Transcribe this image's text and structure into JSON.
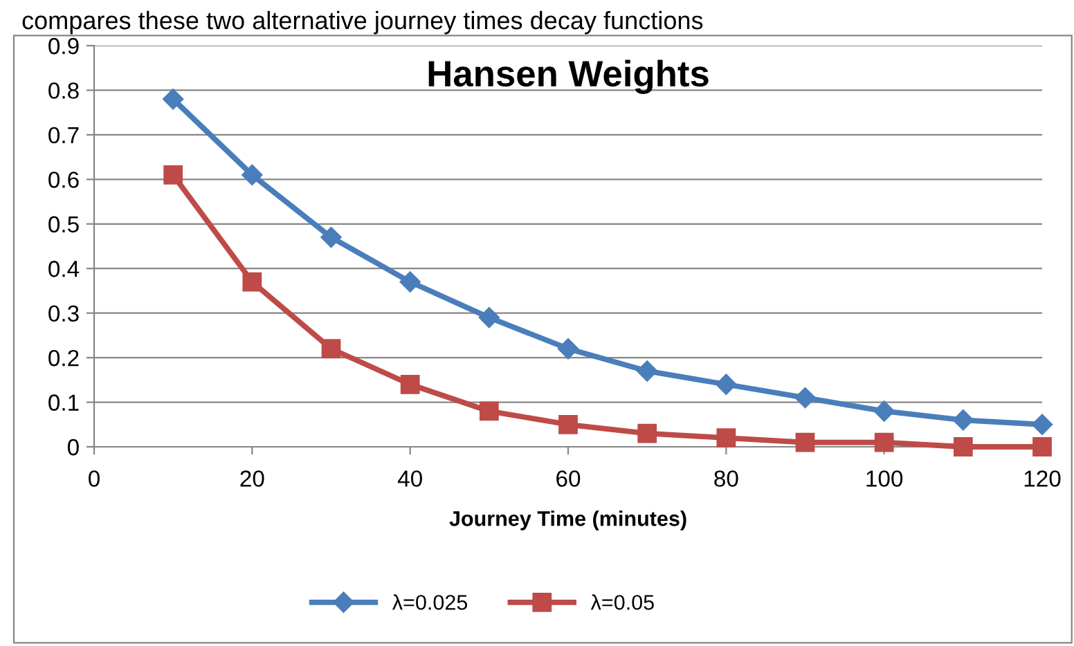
{
  "chart_data": {
    "type": "line",
    "title": "Hansen Weights",
    "xlabel": "Journey Time (minutes)",
    "annotations": [
      "compares these two alternative journey times decay functions"
    ],
    "x": [
      10,
      20,
      30,
      40,
      50,
      60,
      70,
      80,
      90,
      100,
      110,
      120
    ],
    "series": [
      {
        "name": "λ=0.025",
        "color": "#4a7ebb",
        "marker": "diamond",
        "values": [
          0.78,
          0.61,
          0.47,
          0.37,
          0.29,
          0.22,
          0.17,
          0.14,
          0.11,
          0.08,
          0.06,
          0.05
        ]
      },
      {
        "name": "λ=0.05",
        "color": "#be4b48",
        "marker": "square",
        "values": [
          0.61,
          0.37,
          0.22,
          0.14,
          0.08,
          0.05,
          0.03,
          0.02,
          0.01,
          0.01,
          0.0,
          0.0
        ]
      }
    ],
    "xlim": [
      0,
      120
    ],
    "xticks": [
      0,
      20,
      40,
      60,
      80,
      100,
      120
    ],
    "ylim": [
      0,
      0.9
    ],
    "yticks": [
      0,
      0.1,
      0.2,
      0.3,
      0.4,
      0.5,
      0.6,
      0.7,
      0.8,
      0.9
    ],
    "grid": "y",
    "legend": "bottom",
    "line_style": "solid"
  }
}
